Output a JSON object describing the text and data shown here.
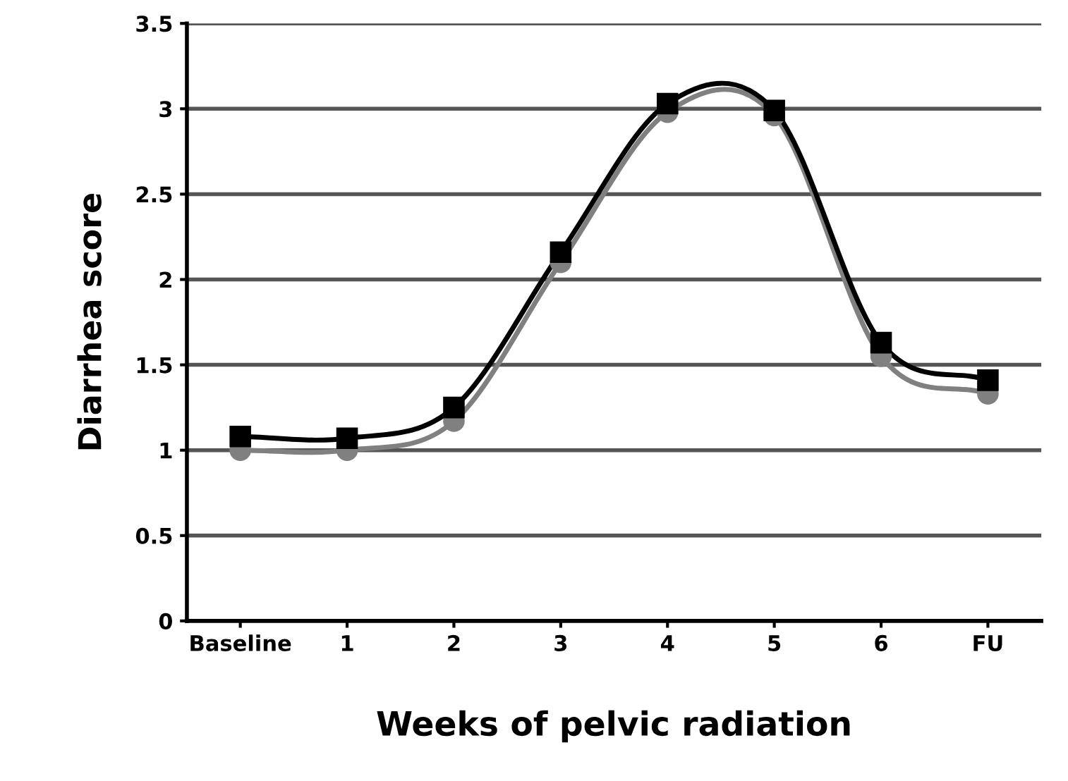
{
  "chart_data": {
    "type": "line",
    "xlabel": "Weeks of pelvic radiation",
    "ylabel": "Diarrhea score",
    "categories": [
      "Baseline",
      "1",
      "2",
      "3",
      "4",
      "5",
      "6",
      "FU"
    ],
    "series": [
      {
        "color": "#808080",
        "marker": "circle",
        "values": [
          1.0,
          1.0,
          1.17,
          2.1,
          2.98,
          2.96,
          1.55,
          1.33
        ]
      },
      {
        "color": "#000000",
        "marker": "square",
        "values": [
          1.08,
          1.07,
          1.25,
          2.16,
          3.03,
          2.99,
          1.63,
          1.41
        ]
      }
    ],
    "ylim": [
      0,
      3.5
    ],
    "yticks": [
      0,
      0.5,
      1,
      1.5,
      2,
      2.5,
      3,
      3.5
    ],
    "grid": "y",
    "line_style": "solid"
  }
}
